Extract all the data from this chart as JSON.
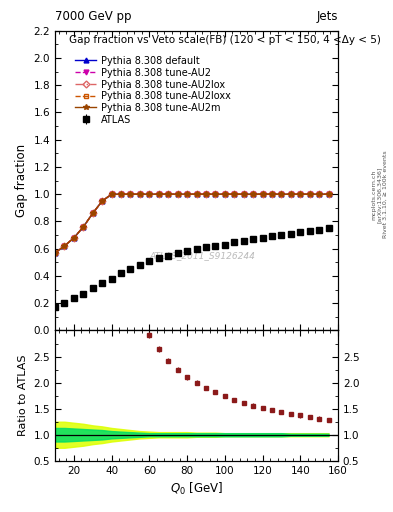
{
  "title_left": "7000 GeV pp",
  "title_right": "Jets",
  "main_title": "Gap fraction vs Veto scale(FB) (120 < pT < 150, 4 <Δy < 5)",
  "xlabel": "Q$_0$ [GeV]",
  "ylabel_main": "Gap fraction",
  "ylabel_ratio": "Ratio to ATLAS",
  "watermark": "ATLAS_2011_S9126244",
  "right_label": "Rivet 3.1.10, ≥ 100k events",
  "arxiv_label": "[arXiv:1306.3436]",
  "mcplots_label": "mcplots.cern.ch",
  "atlas_data_x": [
    10,
    15,
    20,
    25,
    30,
    35,
    40,
    45,
    50,
    55,
    60,
    65,
    70,
    75,
    80,
    85,
    90,
    95,
    100,
    105,
    110,
    115,
    120,
    125,
    130,
    135,
    140,
    145,
    150,
    155
  ],
  "atlas_data_y": [
    0.17,
    0.2,
    0.24,
    0.27,
    0.31,
    0.35,
    0.38,
    0.42,
    0.45,
    0.48,
    0.51,
    0.53,
    0.55,
    0.57,
    0.58,
    0.6,
    0.61,
    0.62,
    0.63,
    0.65,
    0.66,
    0.67,
    0.68,
    0.69,
    0.7,
    0.71,
    0.72,
    0.73,
    0.74,
    0.75
  ],
  "atlas_err_y": [
    0.015,
    0.015,
    0.015,
    0.015,
    0.015,
    0.015,
    0.015,
    0.015,
    0.015,
    0.015,
    0.015,
    0.015,
    0.015,
    0.015,
    0.015,
    0.015,
    0.015,
    0.015,
    0.015,
    0.015,
    0.015,
    0.015,
    0.015,
    0.015,
    0.015,
    0.015,
    0.015,
    0.015,
    0.015,
    0.015
  ],
  "mc_x": [
    10,
    15,
    20,
    25,
    30,
    35,
    40,
    45,
    50,
    55,
    60,
    65,
    70,
    75,
    80,
    85,
    90,
    95,
    100,
    105,
    110,
    115,
    120,
    125,
    130,
    135,
    140,
    145,
    150,
    155
  ],
  "default_y": [
    0.57,
    0.62,
    0.68,
    0.76,
    0.86,
    0.95,
    1.0,
    1.0,
    1.0,
    1.0,
    1.0,
    1.0,
    1.0,
    1.0,
    1.0,
    1.0,
    1.0,
    1.0,
    1.0,
    1.0,
    1.0,
    1.0,
    1.0,
    1.0,
    1.0,
    1.0,
    1.0,
    1.0,
    1.0,
    1.0
  ],
  "au2_y": [
    0.57,
    0.62,
    0.68,
    0.76,
    0.86,
    0.95,
    1.0,
    1.0,
    1.0,
    1.0,
    1.0,
    1.0,
    1.0,
    1.0,
    1.0,
    1.0,
    1.0,
    1.0,
    1.0,
    1.0,
    1.0,
    1.0,
    1.0,
    1.0,
    1.0,
    1.0,
    1.0,
    1.0,
    1.0,
    1.0
  ],
  "au2lox_y": [
    0.57,
    0.62,
    0.68,
    0.76,
    0.86,
    0.95,
    1.0,
    1.0,
    1.0,
    1.0,
    1.0,
    1.0,
    1.0,
    1.0,
    1.0,
    1.0,
    1.0,
    1.0,
    1.0,
    1.0,
    1.0,
    1.0,
    1.0,
    1.0,
    1.0,
    1.0,
    1.0,
    1.0,
    1.0,
    1.0
  ],
  "au2loxx_y": [
    0.57,
    0.62,
    0.68,
    0.76,
    0.86,
    0.95,
    1.0,
    1.0,
    1.0,
    1.0,
    1.0,
    1.0,
    1.0,
    1.0,
    1.0,
    1.0,
    1.0,
    1.0,
    1.0,
    1.0,
    1.0,
    1.0,
    1.0,
    1.0,
    1.0,
    1.0,
    1.0,
    1.0,
    1.0,
    1.0
  ],
  "au2m_y": [
    0.57,
    0.62,
    0.68,
    0.76,
    0.86,
    0.95,
    1.0,
    1.0,
    1.0,
    1.0,
    1.0,
    1.0,
    1.0,
    1.0,
    1.0,
    1.0,
    1.0,
    1.0,
    1.0,
    1.0,
    1.0,
    1.0,
    1.0,
    1.0,
    1.0,
    1.0,
    1.0,
    1.0,
    1.0,
    1.0
  ],
  "ratio_mc_x": [
    60,
    65,
    70,
    75,
    80,
    85,
    90,
    95,
    100,
    105,
    110,
    115,
    120,
    125,
    130,
    135,
    140,
    145,
    150,
    155
  ],
  "ratio_mc_y": [
    2.92,
    2.65,
    2.42,
    2.25,
    2.1,
    2.0,
    1.9,
    1.82,
    1.74,
    1.67,
    1.61,
    1.56,
    1.51,
    1.47,
    1.44,
    1.4,
    1.37,
    1.34,
    1.31,
    1.28
  ],
  "ratio_err_y": [
    0.06,
    0.06,
    0.05,
    0.05,
    0.05,
    0.05,
    0.04,
    0.04,
    0.04,
    0.04,
    0.04,
    0.04,
    0.04,
    0.04,
    0.04,
    0.04,
    0.04,
    0.04,
    0.04,
    0.04
  ],
  "band_x": [
    10,
    15,
    20,
    25,
    30,
    35,
    40,
    45,
    50,
    55,
    60,
    65,
    70,
    75,
    80,
    85,
    90,
    95,
    100,
    105,
    110,
    115,
    120,
    125,
    130,
    135,
    140,
    145,
    150,
    155
  ],
  "band_inner_lo": [
    0.87,
    0.87,
    0.88,
    0.89,
    0.9,
    0.91,
    0.93,
    0.94,
    0.95,
    0.96,
    0.97,
    0.97,
    0.97,
    0.97,
    0.97,
    0.97,
    0.97,
    0.97,
    0.97,
    0.97,
    0.97,
    0.97,
    0.97,
    0.97,
    0.97,
    0.98,
    0.98,
    0.98,
    0.98,
    0.98
  ],
  "band_inner_hi": [
    1.13,
    1.13,
    1.12,
    1.11,
    1.1,
    1.09,
    1.07,
    1.06,
    1.05,
    1.04,
    1.03,
    1.03,
    1.03,
    1.03,
    1.03,
    1.03,
    1.03,
    1.03,
    1.03,
    1.03,
    1.03,
    1.03,
    1.03,
    1.03,
    1.03,
    1.02,
    1.02,
    1.02,
    1.02,
    1.02
  ],
  "band_outer_lo": [
    0.75,
    0.75,
    0.77,
    0.79,
    0.82,
    0.84,
    0.87,
    0.89,
    0.91,
    0.93,
    0.94,
    0.95,
    0.95,
    0.95,
    0.95,
    0.96,
    0.96,
    0.96,
    0.97,
    0.97,
    0.97,
    0.97,
    0.97,
    0.97,
    0.97,
    0.97,
    0.97,
    0.97,
    0.97,
    0.97
  ],
  "band_outer_hi": [
    1.25,
    1.25,
    1.23,
    1.21,
    1.18,
    1.16,
    1.13,
    1.11,
    1.09,
    1.07,
    1.06,
    1.05,
    1.05,
    1.05,
    1.05,
    1.04,
    1.04,
    1.04,
    1.03,
    1.03,
    1.03,
    1.03,
    1.03,
    1.03,
    1.03,
    1.03,
    1.03,
    1.03,
    1.03,
    1.03
  ],
  "xlim": [
    10,
    160
  ],
  "ylim_main": [
    0.0,
    2.2
  ],
  "ylim_ratio": [
    0.5,
    3.0
  ],
  "bg_color": "#ffffff",
  "atlas_color": "#000000",
  "default_color": "#0000cc",
  "au2_color": "#cc00aa",
  "au2lox_color": "#007700",
  "au2loxx_color": "#cc5500",
  "au2m_color": "#994400",
  "ratio_color": "#8b1a1a",
  "green_band_inner": "#00dd66",
  "green_band_outer": "#ddff00",
  "legend_fontsize": 7.0,
  "axis_fontsize": 8.5,
  "title_fontsize": 7.5
}
